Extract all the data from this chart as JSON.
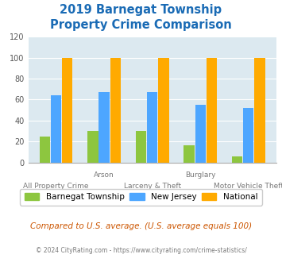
{
  "title": "2019 Barnegat Township\nProperty Crime Comparison",
  "x_labels_row1": [
    "",
    "Arson",
    "",
    "Burglary",
    ""
  ],
  "x_labels_row2": [
    "All Property Crime",
    "",
    "Larceny & Theft",
    "",
    "Motor Vehicle Theft"
  ],
  "barnegat": [
    25,
    30,
    30,
    16,
    6
  ],
  "new_jersey": [
    64,
    67,
    67,
    55,
    52
  ],
  "national": [
    100,
    100,
    100,
    100,
    100
  ],
  "color_barnegat": "#8dc63f",
  "color_nj": "#4da6ff",
  "color_national": "#ffaa00",
  "ylim": [
    0,
    120
  ],
  "yticks": [
    0,
    20,
    40,
    60,
    80,
    100,
    120
  ],
  "bg_color": "#dce9f0",
  "footnote": "Compared to U.S. average. (U.S. average equals 100)",
  "copyright": "© 2024 CityRating.com - https://www.cityrating.com/crime-statistics/",
  "title_color": "#1a6bb5",
  "footnote_color": "#cc5500",
  "copyright_color": "#7a7a7a",
  "legend_labels": [
    "Barnegat Township",
    "New Jersey",
    "National"
  ]
}
